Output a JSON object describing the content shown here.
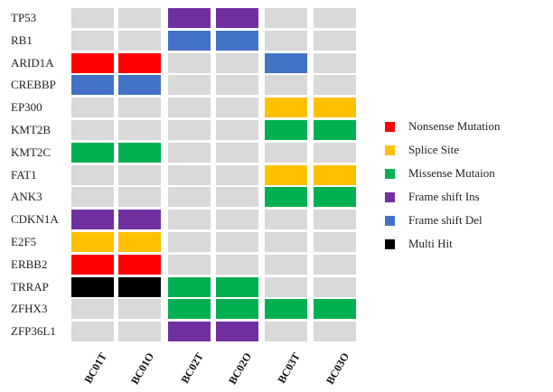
{
  "chart_data": {
    "type": "heatmap",
    "rows": [
      "TP53",
      "RB1",
      "ARID1A",
      "CREBBP",
      "EP300",
      "KMT2B",
      "KMT2C",
      "FAT1",
      "ANK3",
      "CDKN1A",
      "E2F5",
      "ERBB2",
      "TRRAP",
      "ZFHX3",
      "ZFP36L1"
    ],
    "columns": [
      "BC01T",
      "BC01O",
      "BC02T",
      "BC02O",
      "BC03T",
      "BC03O"
    ],
    "values": [
      [
        "",
        "",
        "Frame shift Ins",
        "Frame shift Ins",
        "",
        ""
      ],
      [
        "",
        "",
        "Frame shift Del",
        "Frame shift Del",
        "",
        ""
      ],
      [
        "Nonsense Mutation",
        "Nonsense Mutation",
        "",
        "",
        "Frame shift Del",
        ""
      ],
      [
        "Frame shift Del",
        "Frame shift Del",
        "",
        "",
        "",
        ""
      ],
      [
        "",
        "",
        "",
        "",
        "Splice Site",
        "Splice Site"
      ],
      [
        "",
        "",
        "",
        "",
        "Missense Mutaion",
        "Missense Mutaion"
      ],
      [
        "Missense Mutaion",
        "Missense Mutaion",
        "",
        "",
        "",
        ""
      ],
      [
        "",
        "",
        "",
        "",
        "Splice Site",
        "Splice Site"
      ],
      [
        "",
        "",
        "",
        "",
        "Missense Mutaion",
        "Missense Mutaion"
      ],
      [
        "Frame shift Ins",
        "Frame shift Ins",
        "",
        "",
        "",
        ""
      ],
      [
        "Splice Site",
        "Splice Site",
        "",
        "",
        "",
        ""
      ],
      [
        "Nonsense Mutation",
        "Nonsense Mutation",
        "",
        "",
        "",
        ""
      ],
      [
        "Multi Hit",
        "Multi Hit",
        "Missense Mutaion",
        "Missense Mutaion",
        "",
        ""
      ],
      [
        "",
        "",
        "Missense Mutaion",
        "Missense Mutaion",
        "Missense Mutaion",
        "Missense Mutaion"
      ],
      [
        "",
        "",
        "Frame shift Ins",
        "Frame shift Ins",
        "",
        ""
      ]
    ],
    "legend": [
      {
        "label": "Nonsense Mutation",
        "color": "#ff0000"
      },
      {
        "label": "Splice Site",
        "color": "#ffc000"
      },
      {
        "label": "Missense Mutaion",
        "color": "#00b050"
      },
      {
        "label": "Frame shift Ins",
        "color": "#7030a0"
      },
      {
        "label": "Frame shift Del",
        "color": "#4472c4"
      },
      {
        "label": "Multi Hit",
        "color": "#000000"
      }
    ],
    "legend_position": "right",
    "empty_color": "#d9d9d9"
  }
}
